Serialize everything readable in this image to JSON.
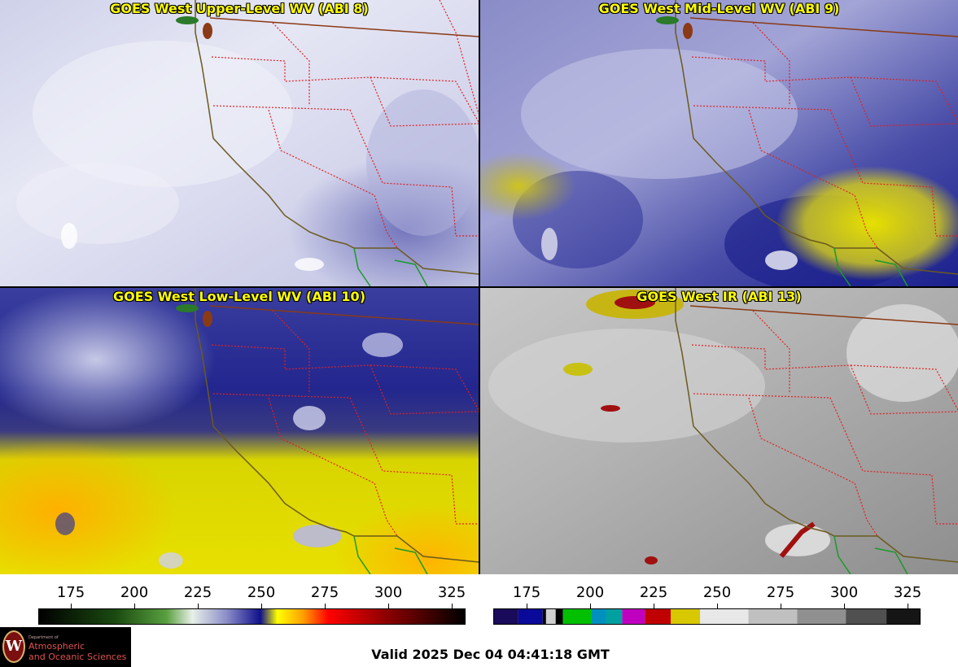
{
  "panels": {
    "upper": {
      "title": "GOES West Upper-Level WV (ABI 8)"
    },
    "mid": {
      "title": "GOES West Mid-Level WV (ABI 9)"
    },
    "low": {
      "title": "GOES West Low-Level WV (ABI 10)"
    },
    "ir": {
      "title": "GOES West IR (ABI 13)"
    }
  },
  "colorbars": {
    "wv": {
      "ticks": [
        "175",
        "200",
        "225",
        "250",
        "275",
        "300",
        "325"
      ]
    },
    "ir": {
      "ticks": [
        "175",
        "200",
        "225",
        "250",
        "275",
        "300",
        "325"
      ]
    }
  },
  "logo": {
    "seal": "W",
    "dept": "Department of",
    "line1": "Atmospheric",
    "line2": "and Oceanic Sciences"
  },
  "footer": {
    "valid_time": "Valid 2025 Dec 04 04:41:18 GMT"
  },
  "colors": {
    "coastline": "#6b5a1e",
    "state_border": "#e02020",
    "country_border": "#8a3a14",
    "title_text": "#ffff00",
    "mexico_coast": "#1a9a2a"
  }
}
